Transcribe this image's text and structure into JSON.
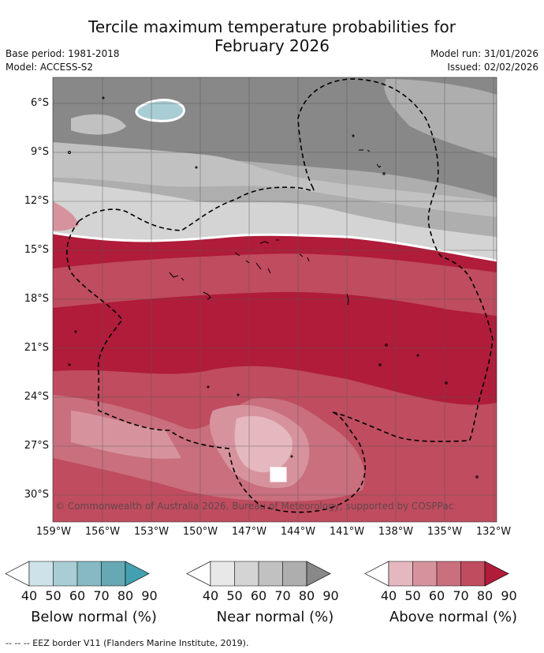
{
  "title_line1": "Tercile maximum temperature probabilities for",
  "title_line2": "February 2026",
  "base_period": "Base period: 1981-2018",
  "model": "Model: ACCESS-S2",
  "model_run": "Model run: 31/01/2026",
  "issued": "Issued: 02/02/2026",
  "copyright": "© Commonwealth of Australia 2026, Bureau of Meteorology, supported by COSPPac",
  "footnote": "-- -- -- EEZ border V11 (Flanders Marine Institute, 2019).",
  "y_axis": [
    "6°S",
    "9°S",
    "12°S",
    "15°S",
    "18°S",
    "21°S",
    "24°S",
    "27°S",
    "30°S"
  ],
  "x_axis": [
    "159°W",
    "156°W",
    "153°W",
    "150°W",
    "147°W",
    "144°W",
    "141°W",
    "138°W",
    "135°W",
    "132°W"
  ],
  "colorbars": [
    {
      "name": "below",
      "title": "Below normal (%)",
      "ticks": [
        "40",
        "50",
        "60",
        "70",
        "80",
        "90"
      ],
      "colors": [
        "#ffffff",
        "#cde3e9",
        "#a9cdd4",
        "#86b9c3",
        "#66a8b3",
        "#43a0b0"
      ]
    },
    {
      "name": "near",
      "title": "Near normal (%)",
      "ticks": [
        "40",
        "50",
        "60",
        "70",
        "80",
        "90"
      ],
      "colors": [
        "#ffffff",
        "#e8e8e8",
        "#d4d4d4",
        "#c1c1c1",
        "#aeaeae",
        "#888888"
      ]
    },
    {
      "name": "above",
      "title": "Above normal (%)",
      "ticks": [
        "40",
        "50",
        "60",
        "70",
        "80",
        "90"
      ],
      "colors": [
        "#ffffff",
        "#e5b8c0",
        "#d6939e",
        "#c96f7d",
        "#bf4c5f",
        "#b01c3a"
      ]
    }
  ]
}
